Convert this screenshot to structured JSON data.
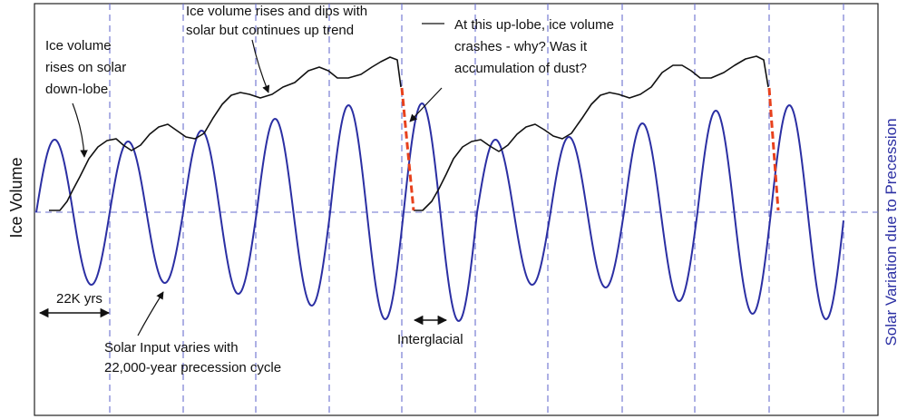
{
  "diagram": {
    "left_axis_label": "Ice Volume",
    "right_axis_label": "Solar Variation due to Precession",
    "annotations": {
      "ice_down_lobe": [
        "Ice volume",
        "rises on solar",
        "down-lobe"
      ],
      "ice_trend": [
        "Ice volume rises and dips with",
        "solar but continues up trend"
      ],
      "up_lobe_crash": [
        "At this up-lobe, ice volume",
        "crashes - why? Was it",
        "accumulation of dust?"
      ],
      "period": "22K yrs",
      "solar_input": [
        "Solar Input varies with",
        "22,000-year precession cycle"
      ],
      "interglacial": "Interglacial"
    },
    "colors": {
      "solar_curve": "#2b2fa3",
      "ice_curve": "#111111",
      "crash_segment": "#e8411c",
      "gridlines": "#6a6fcf",
      "right_label": "#2b2fa3",
      "frame": "#222222"
    }
  }
}
